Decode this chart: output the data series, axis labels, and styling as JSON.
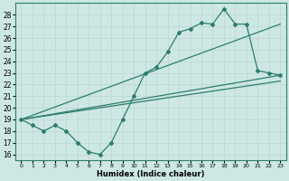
{
  "xlabel": "Humidex (Indice chaleur)",
  "bg_color": "#cde8e4",
  "grid_color": "#c0d8d4",
  "line_color": "#2d7d6e",
  "spine_color": "#2d7d6e",
  "xlim": [
    -0.5,
    23.5
  ],
  "ylim": [
    15.5,
    29.0
  ],
  "xticks": [
    0,
    1,
    2,
    3,
    4,
    5,
    6,
    7,
    8,
    9,
    10,
    11,
    12,
    13,
    14,
    15,
    16,
    17,
    18,
    19,
    20,
    21,
    22,
    23
  ],
  "yticks": [
    16,
    17,
    18,
    19,
    20,
    21,
    22,
    23,
    24,
    25,
    26,
    27,
    28
  ],
  "curve1_x": [
    0,
    1,
    2,
    3,
    4,
    5,
    6,
    7,
    8,
    9,
    10,
    11,
    12,
    13,
    14,
    15,
    16,
    17,
    18,
    19,
    20,
    21,
    22,
    23
  ],
  "curve1_y": [
    19.0,
    18.5,
    18.0,
    18.5,
    18.0,
    17.0,
    16.2,
    16.0,
    17.0,
    19.0,
    21.0,
    23.0,
    23.5,
    24.8,
    26.5,
    26.8,
    27.3,
    27.2,
    28.5,
    27.2,
    27.2,
    23.2,
    23.0,
    22.8
  ],
  "line1_x": [
    0,
    23
  ],
  "line1_y": [
    19.0,
    27.2
  ],
  "line2_x": [
    0,
    23
  ],
  "line2_y": [
    19.0,
    22.8
  ],
  "line3_x": [
    0,
    23
  ],
  "line3_y": [
    19.0,
    22.3
  ]
}
